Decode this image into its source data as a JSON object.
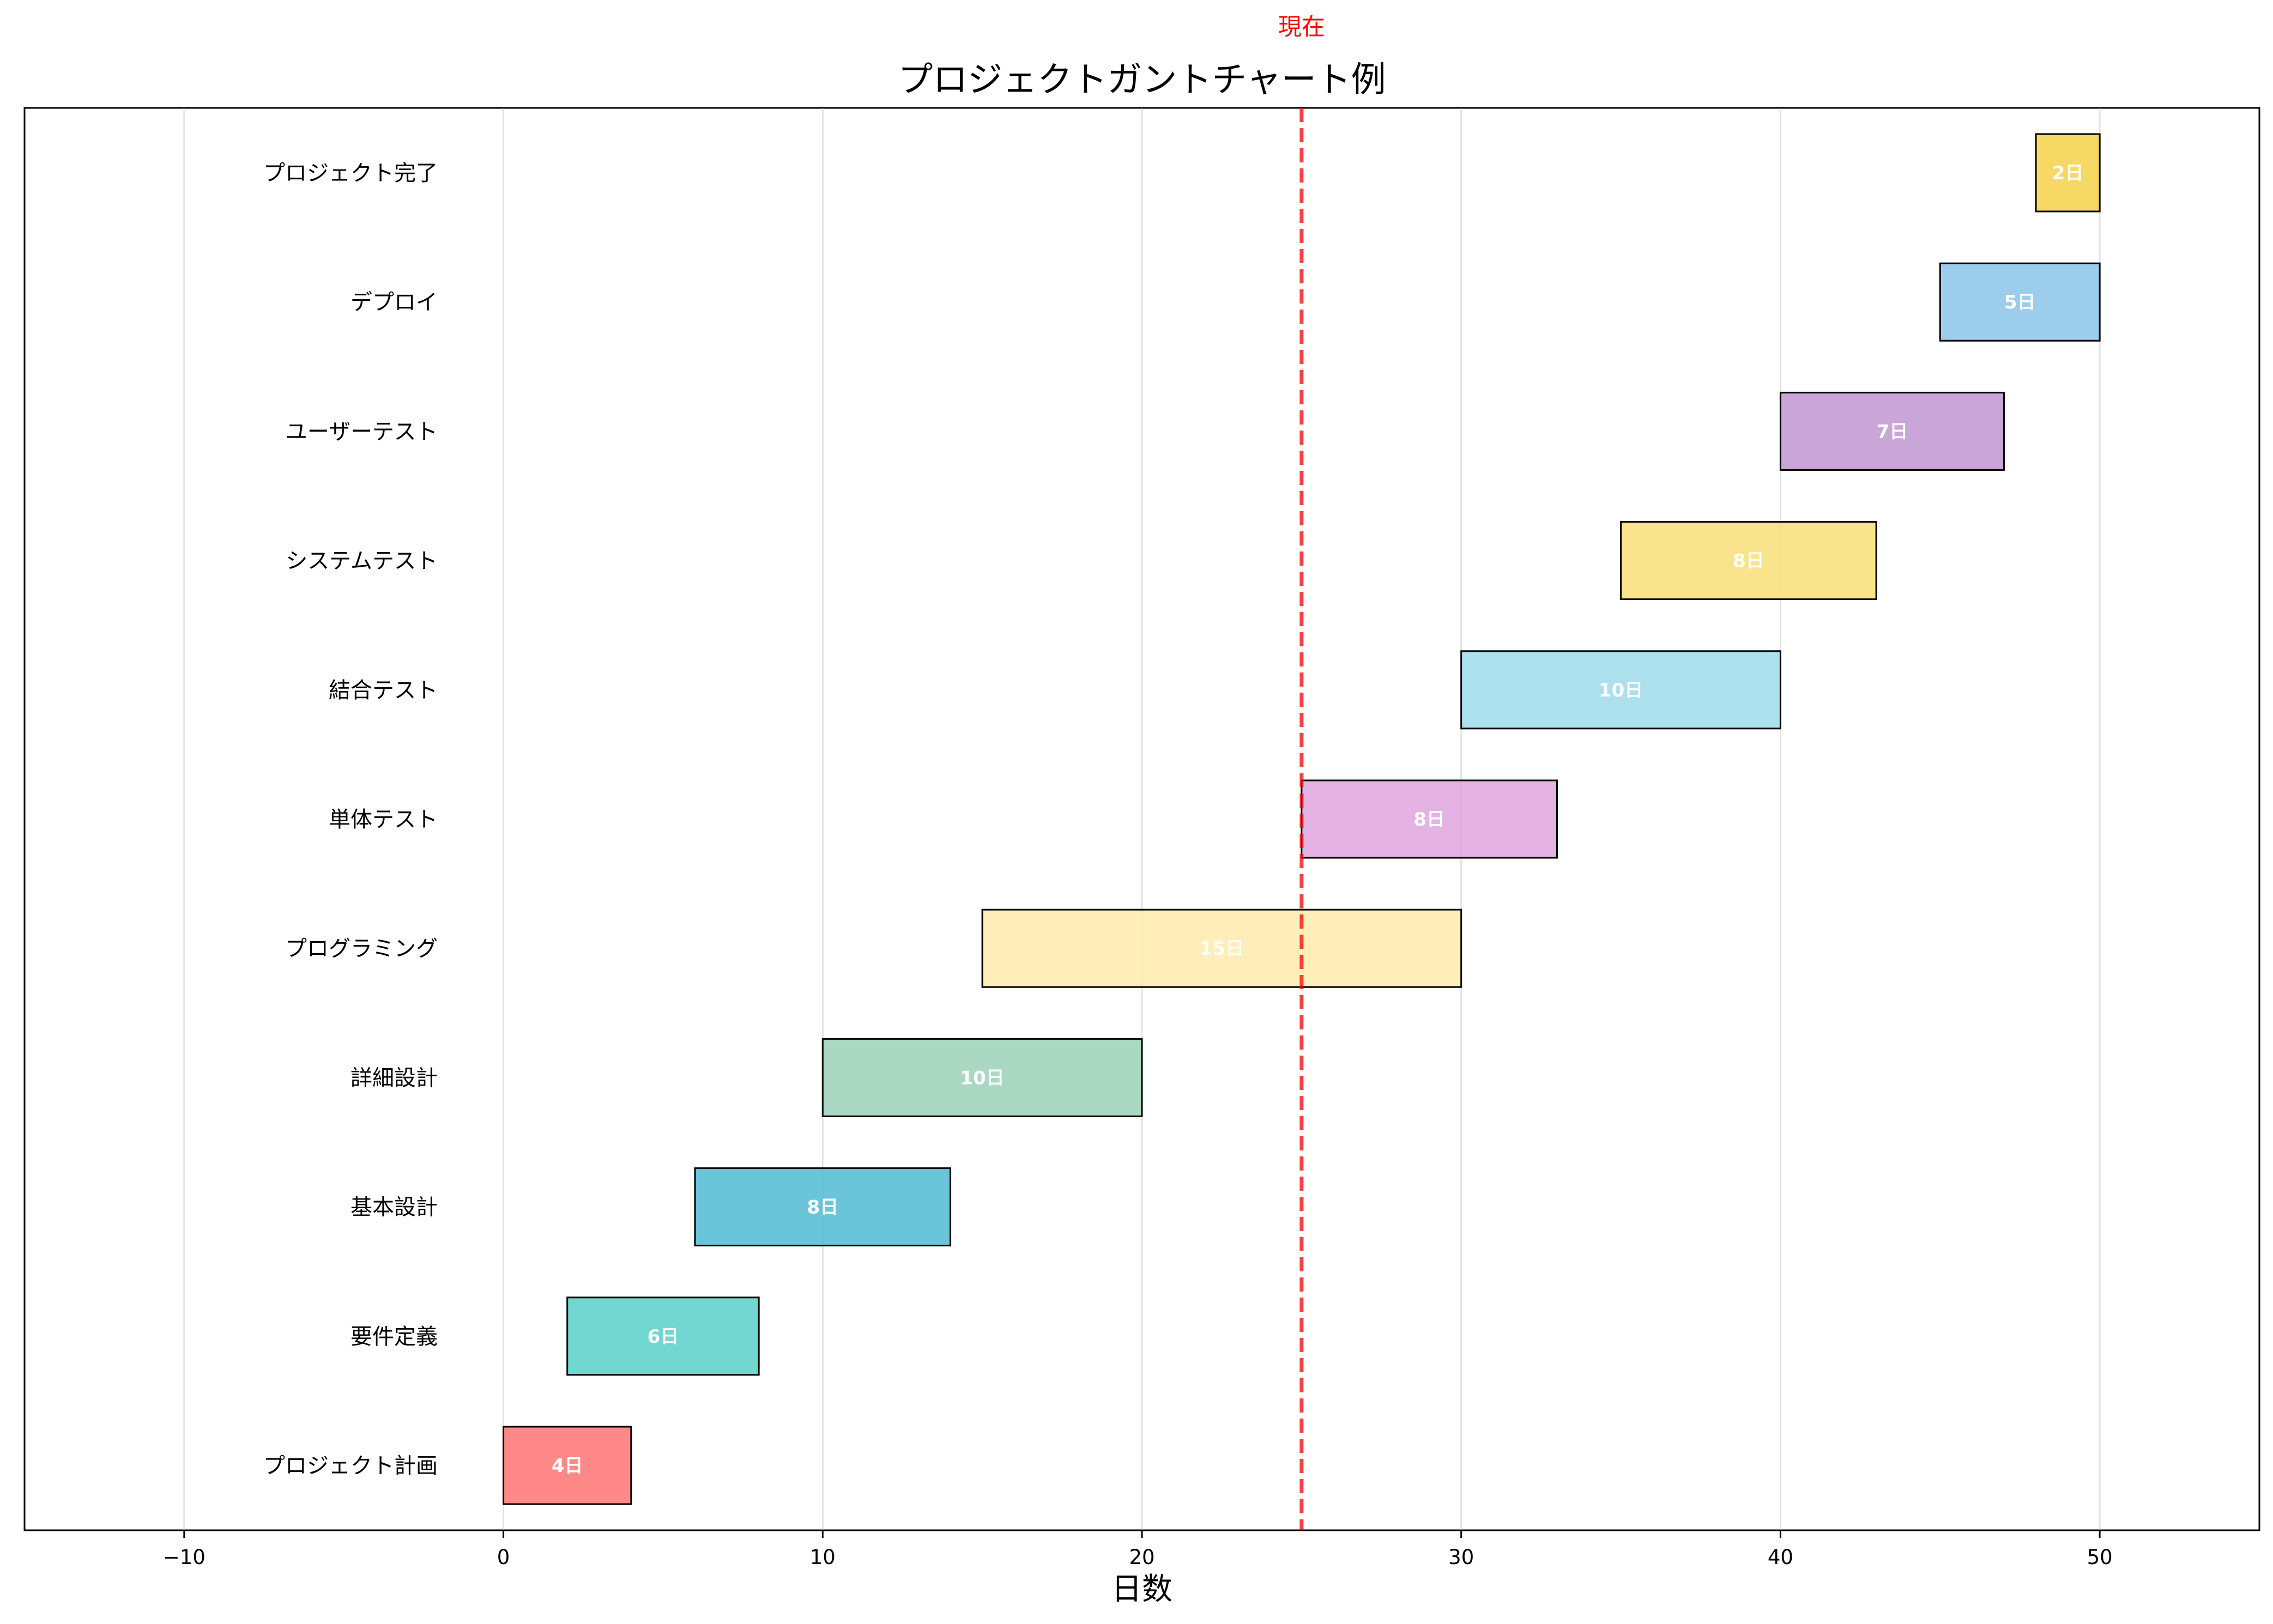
{
  "chart_data": {
    "type": "bar",
    "orientation": "horizontal-gantt",
    "title": "プロジェクトガントチャート例",
    "xlabel": "日数",
    "ylabel": "",
    "xlim": [
      -15,
      55
    ],
    "xticks": [
      -10,
      0,
      10,
      20,
      30,
      40,
      50
    ],
    "grid": "vertical",
    "tasks": [
      {
        "name": "プロジェクト計画",
        "start": 0,
        "duration": 4,
        "label": "4日",
        "color": "#FF6B6B"
      },
      {
        "name": "要件定義",
        "start": 2,
        "duration": 6,
        "label": "6日",
        "color": "#4ECDC4"
      },
      {
        "name": "基本設計",
        "start": 6,
        "duration": 8,
        "label": "8日",
        "color": "#45B7D1"
      },
      {
        "name": "詳細設計",
        "start": 10,
        "duration": 10,
        "label": "10日",
        "color": "#96CEB4"
      },
      {
        "name": "プログラミング",
        "start": 15,
        "duration": 15,
        "label": "15日",
        "color": "#FFEAA7"
      },
      {
        "name": "単体テスト",
        "start": 25,
        "duration": 8,
        "label": "8日",
        "color": "#DDA0DD"
      },
      {
        "name": "結合テスト",
        "start": 30,
        "duration": 10,
        "label": "10日",
        "color": "#98D8E8"
      },
      {
        "name": "システムテスト",
        "start": 35,
        "duration": 8,
        "label": "8日",
        "color": "#F7DC6F"
      },
      {
        "name": "ユーザーテスト",
        "start": 40,
        "duration": 7,
        "label": "7日",
        "color": "#BB8FCE"
      },
      {
        "name": "デプロイ",
        "start": 45,
        "duration": 5,
        "label": "5日",
        "color": "#85C1E9"
      },
      {
        "name": "プロジェクト完了",
        "start": 48,
        "duration": 2,
        "label": "2日",
        "color": "#F4D03F"
      }
    ],
    "current_marker": {
      "x": 25,
      "label": "現在",
      "color": "#FF0000"
    }
  }
}
